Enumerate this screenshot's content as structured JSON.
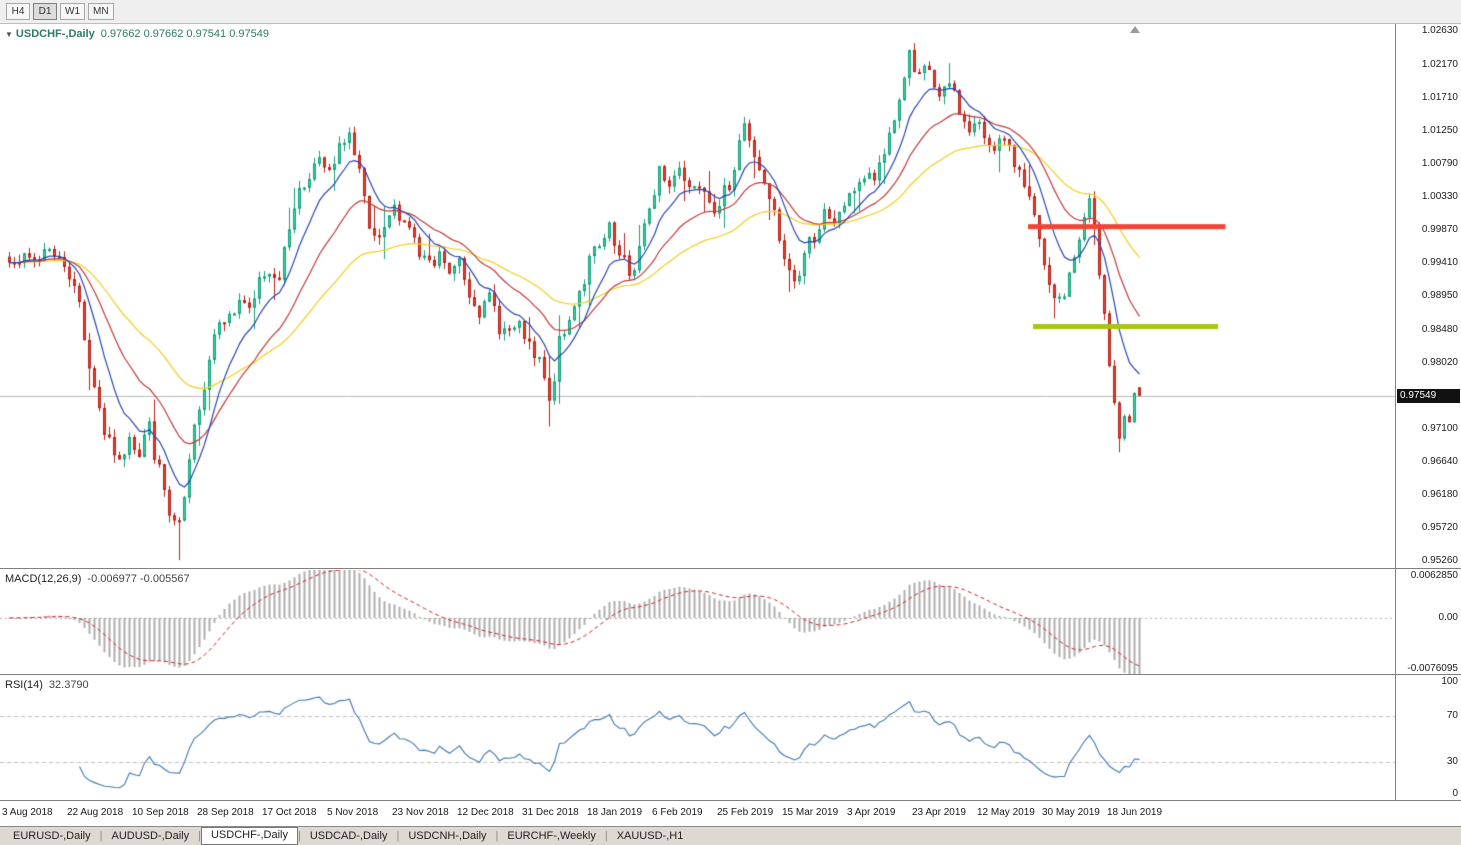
{
  "toolbar": {
    "timeframes": [
      {
        "label": "H4",
        "active": false
      },
      {
        "label": "D1",
        "active": true
      },
      {
        "label": "W1",
        "active": false
      },
      {
        "label": "MN",
        "active": false
      }
    ]
  },
  "chart": {
    "title_symbol": "USDCHF-,Daily",
    "title_ohlc": "0.97662 0.97662 0.97541 0.97549",
    "price_axis": {
      "current": "0.97549"
    }
  },
  "macd": {
    "label": "MACD(12,26,9)",
    "values": "-0.006977 -0.005567",
    "axis": [
      "0.0062850",
      "0.00",
      "-0.0076095"
    ]
  },
  "rsi": {
    "label": "RSI(14)",
    "value": "32.3790",
    "axis": [
      "100",
      "70",
      "30",
      "0"
    ]
  },
  "tabs": [
    {
      "label": "EURUSD-,Daily",
      "active": false
    },
    {
      "label": "AUDUSD-,Daily",
      "active": false
    },
    {
      "label": "USDCHF-,Daily",
      "active": true
    },
    {
      "label": "USDCAD-,Daily",
      "active": false
    },
    {
      "label": "USDCNH-,Daily",
      "active": false
    },
    {
      "label": "EURCHF-,Weekly",
      "active": false
    },
    {
      "label": "XAUUSD-,H1",
      "active": false
    }
  ],
  "colors": {
    "up_fill": "#3ed2a6",
    "up_border": "#17a17c",
    "down_fill": "#ee4136",
    "down_border": "#b92319",
    "ma_fast": "#2746b6",
    "ma_mid": "#c23b3b",
    "ma_slow": "#f2cf1f",
    "macd_hist": "#b0adad",
    "macd_signal": "#cf2626",
    "rsi_line": "#3f78b5",
    "level_dashed": "#c6bfbf",
    "resistance": "#f44336",
    "support": "#a7c515",
    "price_line": "#bcbcbc"
  },
  "chart_data": {
    "type": "candlestick",
    "symbol": "USDCHF",
    "timeframe": "Daily",
    "current": {
      "open": 0.97662,
      "high": 0.97662,
      "low": 0.97541,
      "close": 0.97549
    },
    "candle_count": 227,
    "candles_per_label": 13,
    "price_scale": {
      "top": 1.0272,
      "bottom": 0.9515
    },
    "price_axis_ticks": [
      1.0263,
      1.0217,
      1.0171,
      1.0125,
      1.0079,
      1.0033,
      0.9987,
      0.9941,
      0.9895,
      0.9848,
      0.9802,
      0.971,
      0.9664,
      0.9618,
      0.9572,
      0.9526
    ],
    "x_labels": [
      "3 Aug 2018",
      "22 Aug 2018",
      "10 Sep 2018",
      "28 Sep 2018",
      "17 Oct 2018",
      "5 Nov 2018",
      "23 Nov 2018",
      "12 Dec 2018",
      "31 Dec 2018",
      "18 Jan 2019",
      "6 Feb 2019",
      "25 Feb 2019",
      "15 Mar 2019",
      "3 Apr 2019",
      "23 Apr 2019",
      "12 May 2019",
      "30 May 2019",
      "18 Jun 2019"
    ],
    "price_path_anchors": [
      [
        0,
        0.994
      ],
      [
        2,
        0.9952
      ],
      [
        4,
        0.9938
      ],
      [
        6,
        0.995
      ],
      [
        8,
        0.9962
      ],
      [
        10,
        0.9942
      ],
      [
        12,
        0.9928
      ],
      [
        14,
        0.988
      ],
      [
        16,
        0.98
      ],
      [
        18,
        0.9735
      ],
      [
        20,
        0.9685
      ],
      [
        22,
        0.9662
      ],
      [
        24,
        0.97
      ],
      [
        26,
        0.9678
      ],
      [
        28,
        0.9712
      ],
      [
        30,
        0.9648
      ],
      [
        32,
        0.959
      ],
      [
        34,
        0.9566
      ],
      [
        36,
        0.966
      ],
      [
        38,
        0.9745
      ],
      [
        40,
        0.9805
      ],
      [
        42,
        0.9872
      ],
      [
        44,
        0.9858
      ],
      [
        46,
        0.9892
      ],
      [
        48,
        0.9868
      ],
      [
        50,
        0.9912
      ],
      [
        52,
        0.9932
      ],
      [
        54,
        0.992
      ],
      [
        56,
        0.9992
      ],
      [
        58,
        1.0042
      ],
      [
        60,
        1.0062
      ],
      [
        62,
        1.0082
      ],
      [
        64,
        1.0058
      ],
      [
        66,
        1.0098
      ],
      [
        68,
        1.0122
      ],
      [
        70,
        1.0058
      ],
      [
        72,
        0.9985
      ],
      [
        74,
        0.9962
      ],
      [
        76,
        1.0005
      ],
      [
        78,
        1.0012
      ],
      [
        80,
        0.9988
      ],
      [
        82,
        0.9952
      ],
      [
        84,
        0.993
      ],
      [
        86,
        0.9948
      ],
      [
        88,
        0.9925
      ],
      [
        90,
        0.994
      ],
      [
        92,
        0.9902
      ],
      [
        94,
        0.9872
      ],
      [
        96,
        0.989
      ],
      [
        98,
        0.9855
      ],
      [
        100,
        0.984
      ],
      [
        102,
        0.9852
      ],
      [
        104,
        0.9818
      ],
      [
        106,
        0.98
      ],
      [
        108,
        0.9745
      ],
      [
        110,
        0.9822
      ],
      [
        112,
        0.9862
      ],
      [
        114,
        0.9902
      ],
      [
        116,
        0.994
      ],
      [
        118,
        0.9962
      ],
      [
        120,
        0.998
      ],
      [
        122,
        0.9948
      ],
      [
        124,
        0.9922
      ],
      [
        126,
        0.9958
      ],
      [
        128,
        1.0012
      ],
      [
        130,
        1.0068
      ],
      [
        132,
        1.0048
      ],
      [
        134,
        1.0078
      ],
      [
        136,
        1.0042
      ],
      [
        138,
        1.006
      ],
      [
        140,
        1.003
      ],
      [
        142,
        1.0012
      ],
      [
        144,
        1.0052
      ],
      [
        146,
        1.0108
      ],
      [
        147,
        1.0132
      ],
      [
        149,
        1.0088
      ],
      [
        151,
        1.0048
      ],
      [
        153,
        1.0002
      ],
      [
        155,
        0.9942
      ],
      [
        157,
        0.9912
      ],
      [
        159,
        0.995
      ],
      [
        161,
        0.9982
      ],
      [
        163,
        1.0002
      ],
      [
        165,
        0.9992
      ],
      [
        167,
        1.0022
      ],
      [
        169,
        1.0042
      ],
      [
        171,
        1.0062
      ],
      [
        173,
        1.0052
      ],
      [
        175,
        1.0092
      ],
      [
        177,
        1.0142
      ],
      [
        179,
        1.0198
      ],
      [
        180,
        1.0225
      ],
      [
        182,
        1.0192
      ],
      [
        184,
        1.0212
      ],
      [
        186,
        1.0162
      ],
      [
        188,
        1.0192
      ],
      [
        190,
        1.0152
      ],
      [
        192,
        1.0122
      ],
      [
        194,
        1.0132
      ],
      [
        196,
        1.0102
      ],
      [
        198,
        1.0112
      ],
      [
        200,
        1.0092
      ],
      [
        202,
        1.0072
      ],
      [
        204,
        1.0032
      ],
      [
        206,
        0.9962
      ],
      [
        208,
        0.9902
      ],
      [
        210,
        0.9882
      ],
      [
        212,
        0.9922
      ],
      [
        214,
        0.9972
      ],
      [
        216,
        1.0022
      ],
      [
        217,
        0.9992
      ],
      [
        218,
        0.9922
      ],
      [
        219,
        0.9862
      ],
      [
        220,
        0.9802
      ],
      [
        221,
        0.9742
      ],
      [
        222,
        0.9692
      ],
      [
        223,
        0.9732
      ],
      [
        224,
        0.9718
      ],
      [
        225,
        0.9758
      ],
      [
        226,
        0.97549
      ]
    ],
    "wick_events": [
      {
        "i": 34,
        "low": 0.9526
      },
      {
        "i": 108,
        "low": 0.9712
      },
      {
        "i": 180,
        "high": 1.0231
      },
      {
        "i": 222,
        "low": 0.9676
      }
    ],
    "moving_averages": [
      {
        "type": "ema",
        "period": 9,
        "color_key": "ma_fast"
      },
      {
        "type": "ema",
        "period": 21,
        "color_key": "ma_mid"
      },
      {
        "type": "ema",
        "period": 45,
        "color_key": "ma_slow"
      }
    ],
    "horizontal_lines": [
      {
        "name": "resistance",
        "price": 0.999,
        "from_i": 204,
        "to_i": 243.5,
        "color_key": "resistance",
        "thickness": 5
      },
      {
        "name": "support",
        "price": 0.9851,
        "from_i": 205,
        "to_i": 242,
        "color_key": "support",
        "thickness": 5
      }
    ],
    "macd": {
      "fast": 12,
      "slow": 26,
      "signal": 9,
      "current_main": -0.006977,
      "current_signal": -0.005567,
      "scale_max": 0.006285,
      "scale_min": -0.0076095
    },
    "rsi": {
      "period": 14,
      "current": 32.379,
      "levels": [
        70,
        30
      ],
      "scale": [
        0,
        100
      ]
    }
  }
}
